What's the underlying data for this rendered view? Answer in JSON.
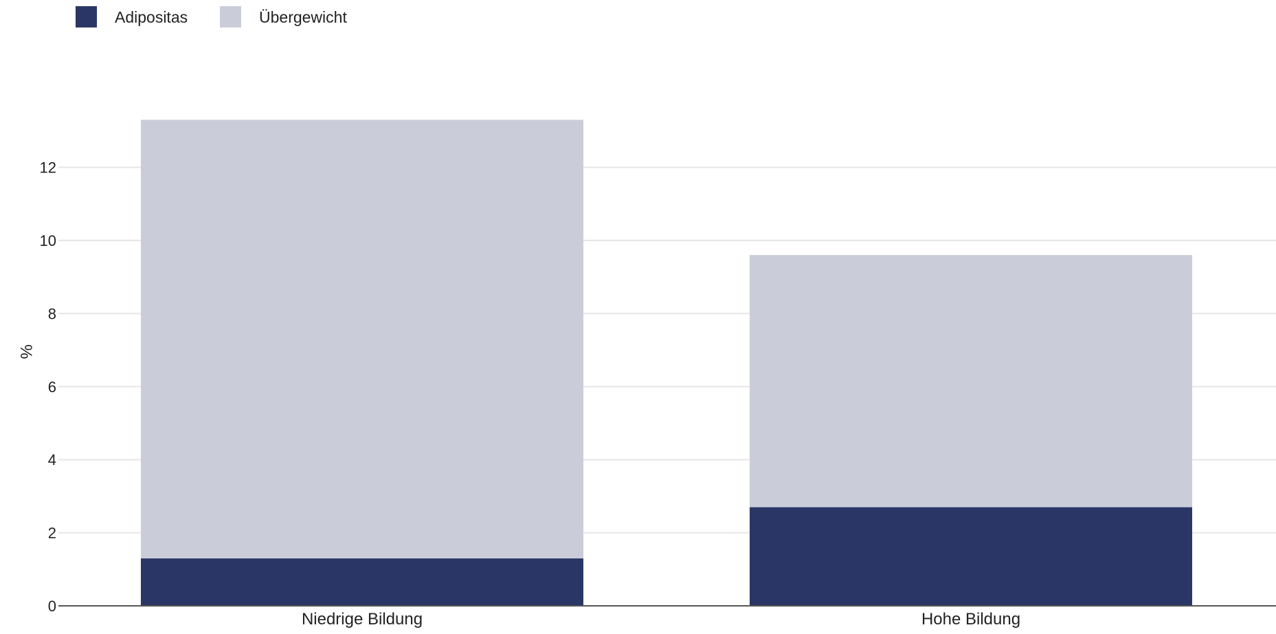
{
  "chart_data": {
    "type": "bar",
    "stacked": true,
    "categories": [
      "Niedrige Bildung",
      "Hohe Bildung"
    ],
    "series": [
      {
        "name": "Adipositas",
        "color": "#2a3665",
        "values": [
          1.3,
          2.7
        ]
      },
      {
        "name": "Übergewicht",
        "color": "#cacdd9",
        "values": [
          12.0,
          6.9
        ]
      }
    ],
    "title": "",
    "xlabel": "",
    "ylabel": "%",
    "ylim": [
      0,
      13.3
    ],
    "yticks": [
      0,
      2,
      4,
      6,
      8,
      10,
      12
    ],
    "grid": true,
    "legend_position": "top-left"
  }
}
